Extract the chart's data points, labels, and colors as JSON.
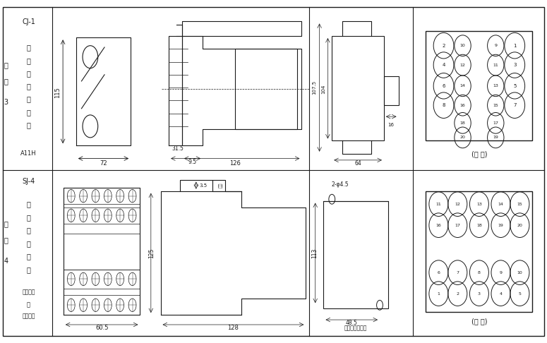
{
  "bg_color": "#ffffff",
  "line_color": "#1a1a1a",
  "fig_width": 7.75,
  "fig_height": 4.86
}
